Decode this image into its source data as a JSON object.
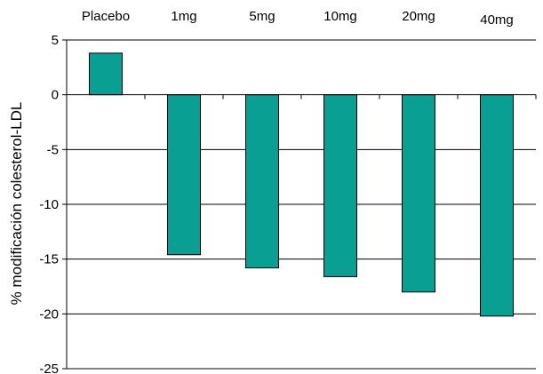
{
  "chart_data": {
    "type": "bar",
    "title": "",
    "xlabel": "",
    "ylabel": "% modificación colesterol-LDL",
    "categories": [
      "Placebo",
      "1mg",
      "5mg",
      "10mg",
      "20mg",
      "40mg"
    ],
    "values": [
      3.8,
      -14.6,
      -15.8,
      -16.6,
      -18.0,
      -20.2
    ],
    "ylim": [
      -25,
      5
    ],
    "yticks": [
      5,
      0,
      -5,
      -10,
      -15,
      -20,
      -25
    ],
    "category_axis_position": "top",
    "grid": true,
    "bar_color": "#0a9f93"
  }
}
